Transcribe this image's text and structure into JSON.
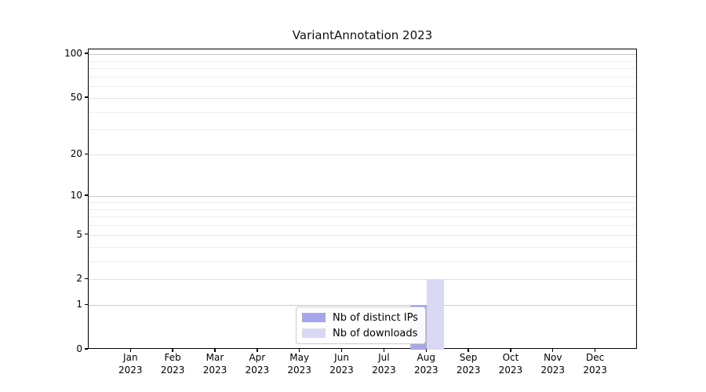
{
  "chart_data": {
    "type": "bar",
    "title": "VariantAnnotation 2023",
    "categories": [
      "Jan",
      "Feb",
      "Mar",
      "Apr",
      "May",
      "Jun",
      "Jul",
      "Aug",
      "Sep",
      "Oct",
      "Nov",
      "Dec"
    ],
    "x_year": "2023",
    "series": [
      {
        "name": "Nb of distinct IPs",
        "color": "#a6a6ea",
        "values": [
          0,
          0,
          0,
          0,
          0,
          0,
          0,
          1,
          0,
          0,
          0,
          0
        ]
      },
      {
        "name": "Nb of downloads",
        "color": "#d9d9f6",
        "values": [
          0,
          0,
          0,
          0,
          0,
          0,
          0,
          2,
          0,
          0,
          0,
          0
        ]
      }
    ],
    "y_axis": {
      "scale": "log1p",
      "range": [
        0,
        100
      ],
      "major_ticks": [
        0,
        1,
        2,
        5,
        10,
        20,
        50,
        100
      ],
      "emphasized_gridlines": [
        1,
        10,
        100
      ],
      "minor_gridlines": [
        3,
        4,
        6,
        7,
        8,
        9,
        30,
        40,
        60,
        70,
        80,
        90
      ],
      "grid_color_emphasized": "#c9c9c9",
      "grid_color_major": "#e3e3e3",
      "grid_color_minor": "#eeeeee"
    },
    "legend": {
      "position": "bottom-center"
    },
    "axis_color": "#000000",
    "background": "#ffffff"
  }
}
